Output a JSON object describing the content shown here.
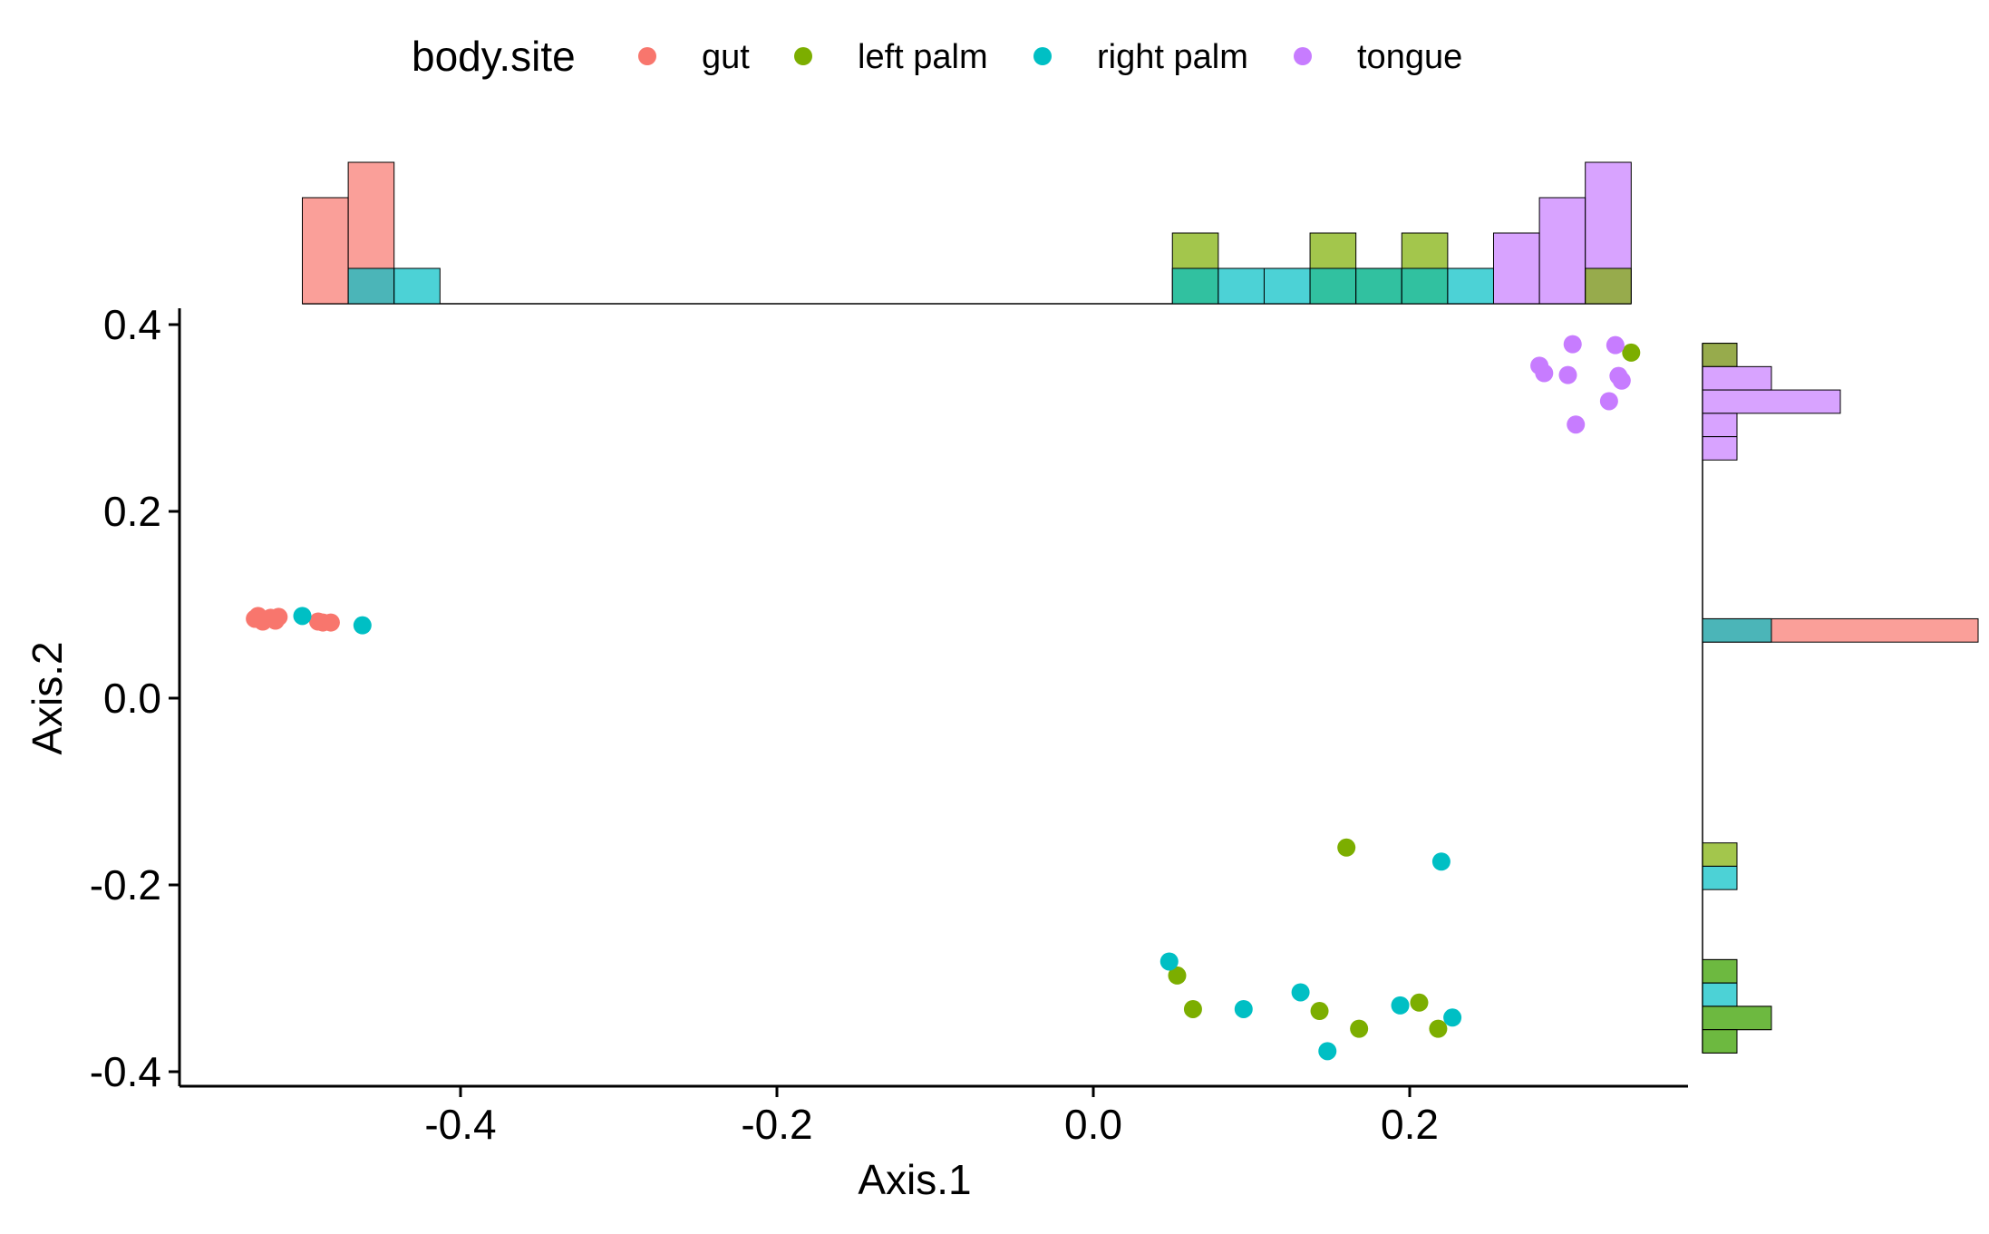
{
  "chart_data": {
    "type": "scatter",
    "title": "",
    "xlabel": "Axis.1",
    "ylabel": "Axis.2",
    "xlim": [
      -0.575,
      0.375
    ],
    "ylim": [
      -0.415,
      0.415
    ],
    "x_ticks": [
      -0.4,
      -0.2,
      0.0,
      0.2
    ],
    "x_tick_labels": [
      "-0.4",
      "-0.2",
      "0.0",
      "0.2"
    ],
    "y_ticks": [
      -0.4,
      -0.2,
      0.0,
      0.2,
      0.4
    ],
    "y_tick_labels": [
      "-0.4",
      "-0.2",
      "0.0",
      "0.2",
      "0.4"
    ],
    "grid": false,
    "legend": {
      "title": "body.site",
      "position": "top",
      "entries": [
        "gut",
        "left palm",
        "right palm",
        "tongue"
      ]
    },
    "colors": {
      "gut": "#F8766D",
      "left palm": "#7CAE00",
      "right palm": "#00BFC4",
      "tongue": "#C77CFF"
    },
    "series": [
      {
        "name": "gut",
        "points": [
          [
            -0.53,
            0.085
          ],
          [
            -0.528,
            0.088
          ],
          [
            -0.525,
            0.082
          ],
          [
            -0.52,
            0.086
          ],
          [
            -0.517,
            0.083
          ],
          [
            -0.515,
            0.087
          ],
          [
            -0.49,
            0.082
          ],
          [
            -0.487,
            0.081
          ],
          [
            -0.482,
            0.081
          ]
        ]
      },
      {
        "name": "left palm",
        "points": [
          [
            0.34,
            0.37
          ],
          [
            0.16,
            -0.16
          ],
          [
            0.053,
            -0.297
          ],
          [
            0.063,
            -0.333
          ],
          [
            0.143,
            -0.335
          ],
          [
            0.168,
            -0.354
          ],
          [
            0.206,
            -0.326
          ],
          [
            0.218,
            -0.354
          ]
        ]
      },
      {
        "name": "right palm",
        "points": [
          [
            -0.5,
            0.088
          ],
          [
            -0.462,
            0.078
          ],
          [
            0.22,
            -0.175
          ],
          [
            0.048,
            -0.282
          ],
          [
            0.095,
            -0.333
          ],
          [
            0.131,
            -0.315
          ],
          [
            0.148,
            -0.378
          ],
          [
            0.194,
            -0.329
          ],
          [
            0.227,
            -0.342
          ]
        ]
      },
      {
        "name": "tongue",
        "points": [
          [
            0.303,
            0.379
          ],
          [
            0.33,
            0.378
          ],
          [
            0.282,
            0.356
          ],
          [
            0.285,
            0.348
          ],
          [
            0.3,
            0.346
          ],
          [
            0.332,
            0.345
          ],
          [
            0.334,
            0.34
          ],
          [
            0.326,
            0.318
          ],
          [
            0.305,
            0.293
          ]
        ]
      }
    ],
    "marginal_x_histogram": {
      "bin_width": 0.029,
      "bins": [
        {
          "x_start": -0.5,
          "counts": {
            "gut": 3
          }
        },
        {
          "x_start": -0.471,
          "counts": {
            "gut": 4,
            "right palm": 1
          }
        },
        {
          "x_start": -0.442,
          "counts": {
            "right palm": 1
          }
        },
        {
          "x_start": 0.05,
          "counts": {
            "left palm": 2,
            "right palm": 1
          }
        },
        {
          "x_start": 0.079,
          "counts": {
            "right palm": 1
          }
        },
        {
          "x_start": 0.108,
          "counts": {
            "right palm": 1
          }
        },
        {
          "x_start": 0.137,
          "counts": {
            "left palm": 2,
            "right palm": 1
          }
        },
        {
          "x_start": 0.166,
          "counts": {
            "left palm": 1,
            "right palm": 1
          }
        },
        {
          "x_start": 0.195,
          "counts": {
            "left palm": 2,
            "right palm": 1
          }
        },
        {
          "x_start": 0.224,
          "counts": {
            "right palm": 1
          }
        },
        {
          "x_start": 0.253,
          "counts": {
            "tongue": 2
          }
        },
        {
          "x_start": 0.282,
          "counts": {
            "tongue": 3
          }
        },
        {
          "x_start": 0.311,
          "counts": {
            "tongue": 4,
            "left palm": 1
          }
        }
      ]
    },
    "marginal_y_histogram": {
      "bin_width": 0.025,
      "bins": [
        {
          "y_start": 0.355,
          "counts": {
            "tongue": 1,
            "left palm": 1
          }
        },
        {
          "y_start": 0.33,
          "counts": {
            "tongue": 2
          }
        },
        {
          "y_start": 0.305,
          "counts": {
            "tongue": 4
          }
        },
        {
          "y_start": 0.28,
          "counts": {
            "tongue": 1
          }
        },
        {
          "y_start": 0.255,
          "counts": {
            "tongue": 1
          }
        },
        {
          "y_start": 0.06,
          "counts": {
            "right palm": 2,
            "gut": 8
          }
        },
        {
          "y_start": -0.18,
          "counts": {
            "left palm": 1
          }
        },
        {
          "y_start": -0.205,
          "counts": {
            "right palm": 1
          }
        },
        {
          "y_start": -0.305,
          "counts": {
            "right palm": 1,
            "left palm": 1
          }
        },
        {
          "y_start": -0.33,
          "counts": {
            "right palm": 1
          }
        },
        {
          "y_start": -0.355,
          "counts": {
            "right palm": 2,
            "left palm": 2
          }
        },
        {
          "y_start": -0.38,
          "counts": {
            "right palm": 1,
            "left palm": 1
          }
        }
      ]
    }
  }
}
